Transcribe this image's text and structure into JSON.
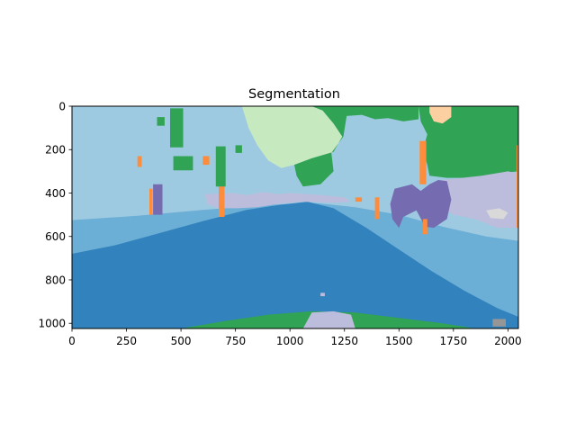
{
  "chart_data": {
    "type": "heatmap",
    "title": "Segmentation",
    "xlabel": "",
    "ylabel": "",
    "image_width": 2048,
    "image_height": 1024,
    "xlim": [
      0,
      2048
    ],
    "ylim": [
      1024,
      0
    ],
    "x_ticks": [
      0,
      250,
      500,
      750,
      1000,
      1250,
      1500,
      1750,
      2000
    ],
    "y_ticks": [
      0,
      200,
      400,
      600,
      800,
      1000
    ],
    "grid": false,
    "legend": "none",
    "colormap": "tab20c",
    "segment_colors": {
      "sky": "#9ecae1",
      "far_water": "#6baed6",
      "near_water": "#3182bd",
      "vegetation": "#31a354",
      "light_vegetation": "#c7e9c0",
      "building": "#bcbddc",
      "structure_dark": "#756bb1",
      "pole": "#fd8d3c",
      "sign": "#fdd0a2",
      "misc_gray": "#969696",
      "light_gray": "#d9d9d9"
    }
  }
}
